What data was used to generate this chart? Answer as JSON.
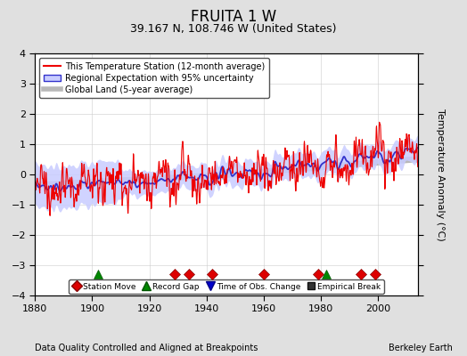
{
  "title": "FRUITA 1 W",
  "subtitle": "39.167 N, 108.746 W (United States)",
  "ylabel": "Temperature Anomaly (°C)",
  "footer_left": "Data Quality Controlled and Aligned at Breakpoints",
  "footer_right": "Berkeley Earth",
  "xlim": [
    1880,
    2014
  ],
  "ylim": [
    -4,
    4
  ],
  "yticks": [
    -4,
    -3,
    -2,
    -1,
    0,
    1,
    2,
    3,
    4
  ],
  "xticks": [
    1880,
    1900,
    1920,
    1940,
    1960,
    1980,
    2000
  ],
  "title_fontsize": 12,
  "subtitle_fontsize": 9,
  "legend_items": [
    {
      "label": "This Temperature Station (12-month average)",
      "color": "#ff0000",
      "lw": 1.5
    },
    {
      "label": "Regional Expectation with 95% uncertainty",
      "band_color": "#b0b8ff",
      "line_color": "#3333cc",
      "lw": 1.5
    },
    {
      "label": "Global Land (5-year average)",
      "color": "#b0b0b0",
      "lw": 4
    }
  ],
  "marker_legend": [
    {
      "label": "Station Move",
      "color": "#dd0000",
      "marker": "D"
    },
    {
      "label": "Record Gap",
      "color": "#008800",
      "marker": "^"
    },
    {
      "label": "Time of Obs. Change",
      "color": "#0000cc",
      "marker": "v"
    },
    {
      "label": "Empirical Break",
      "color": "#333333",
      "marker": "s"
    }
  ],
  "station_moves": [
    1929,
    1934,
    1942,
    1960,
    1979,
    1994,
    1999
  ],
  "record_gaps": [
    1902,
    1982
  ],
  "time_obs_changes": [],
  "empirical_breaks": [],
  "bg_color": "#e0e0e0",
  "plot_bg_color": "#ffffff",
  "grid_color": "#cccccc"
}
